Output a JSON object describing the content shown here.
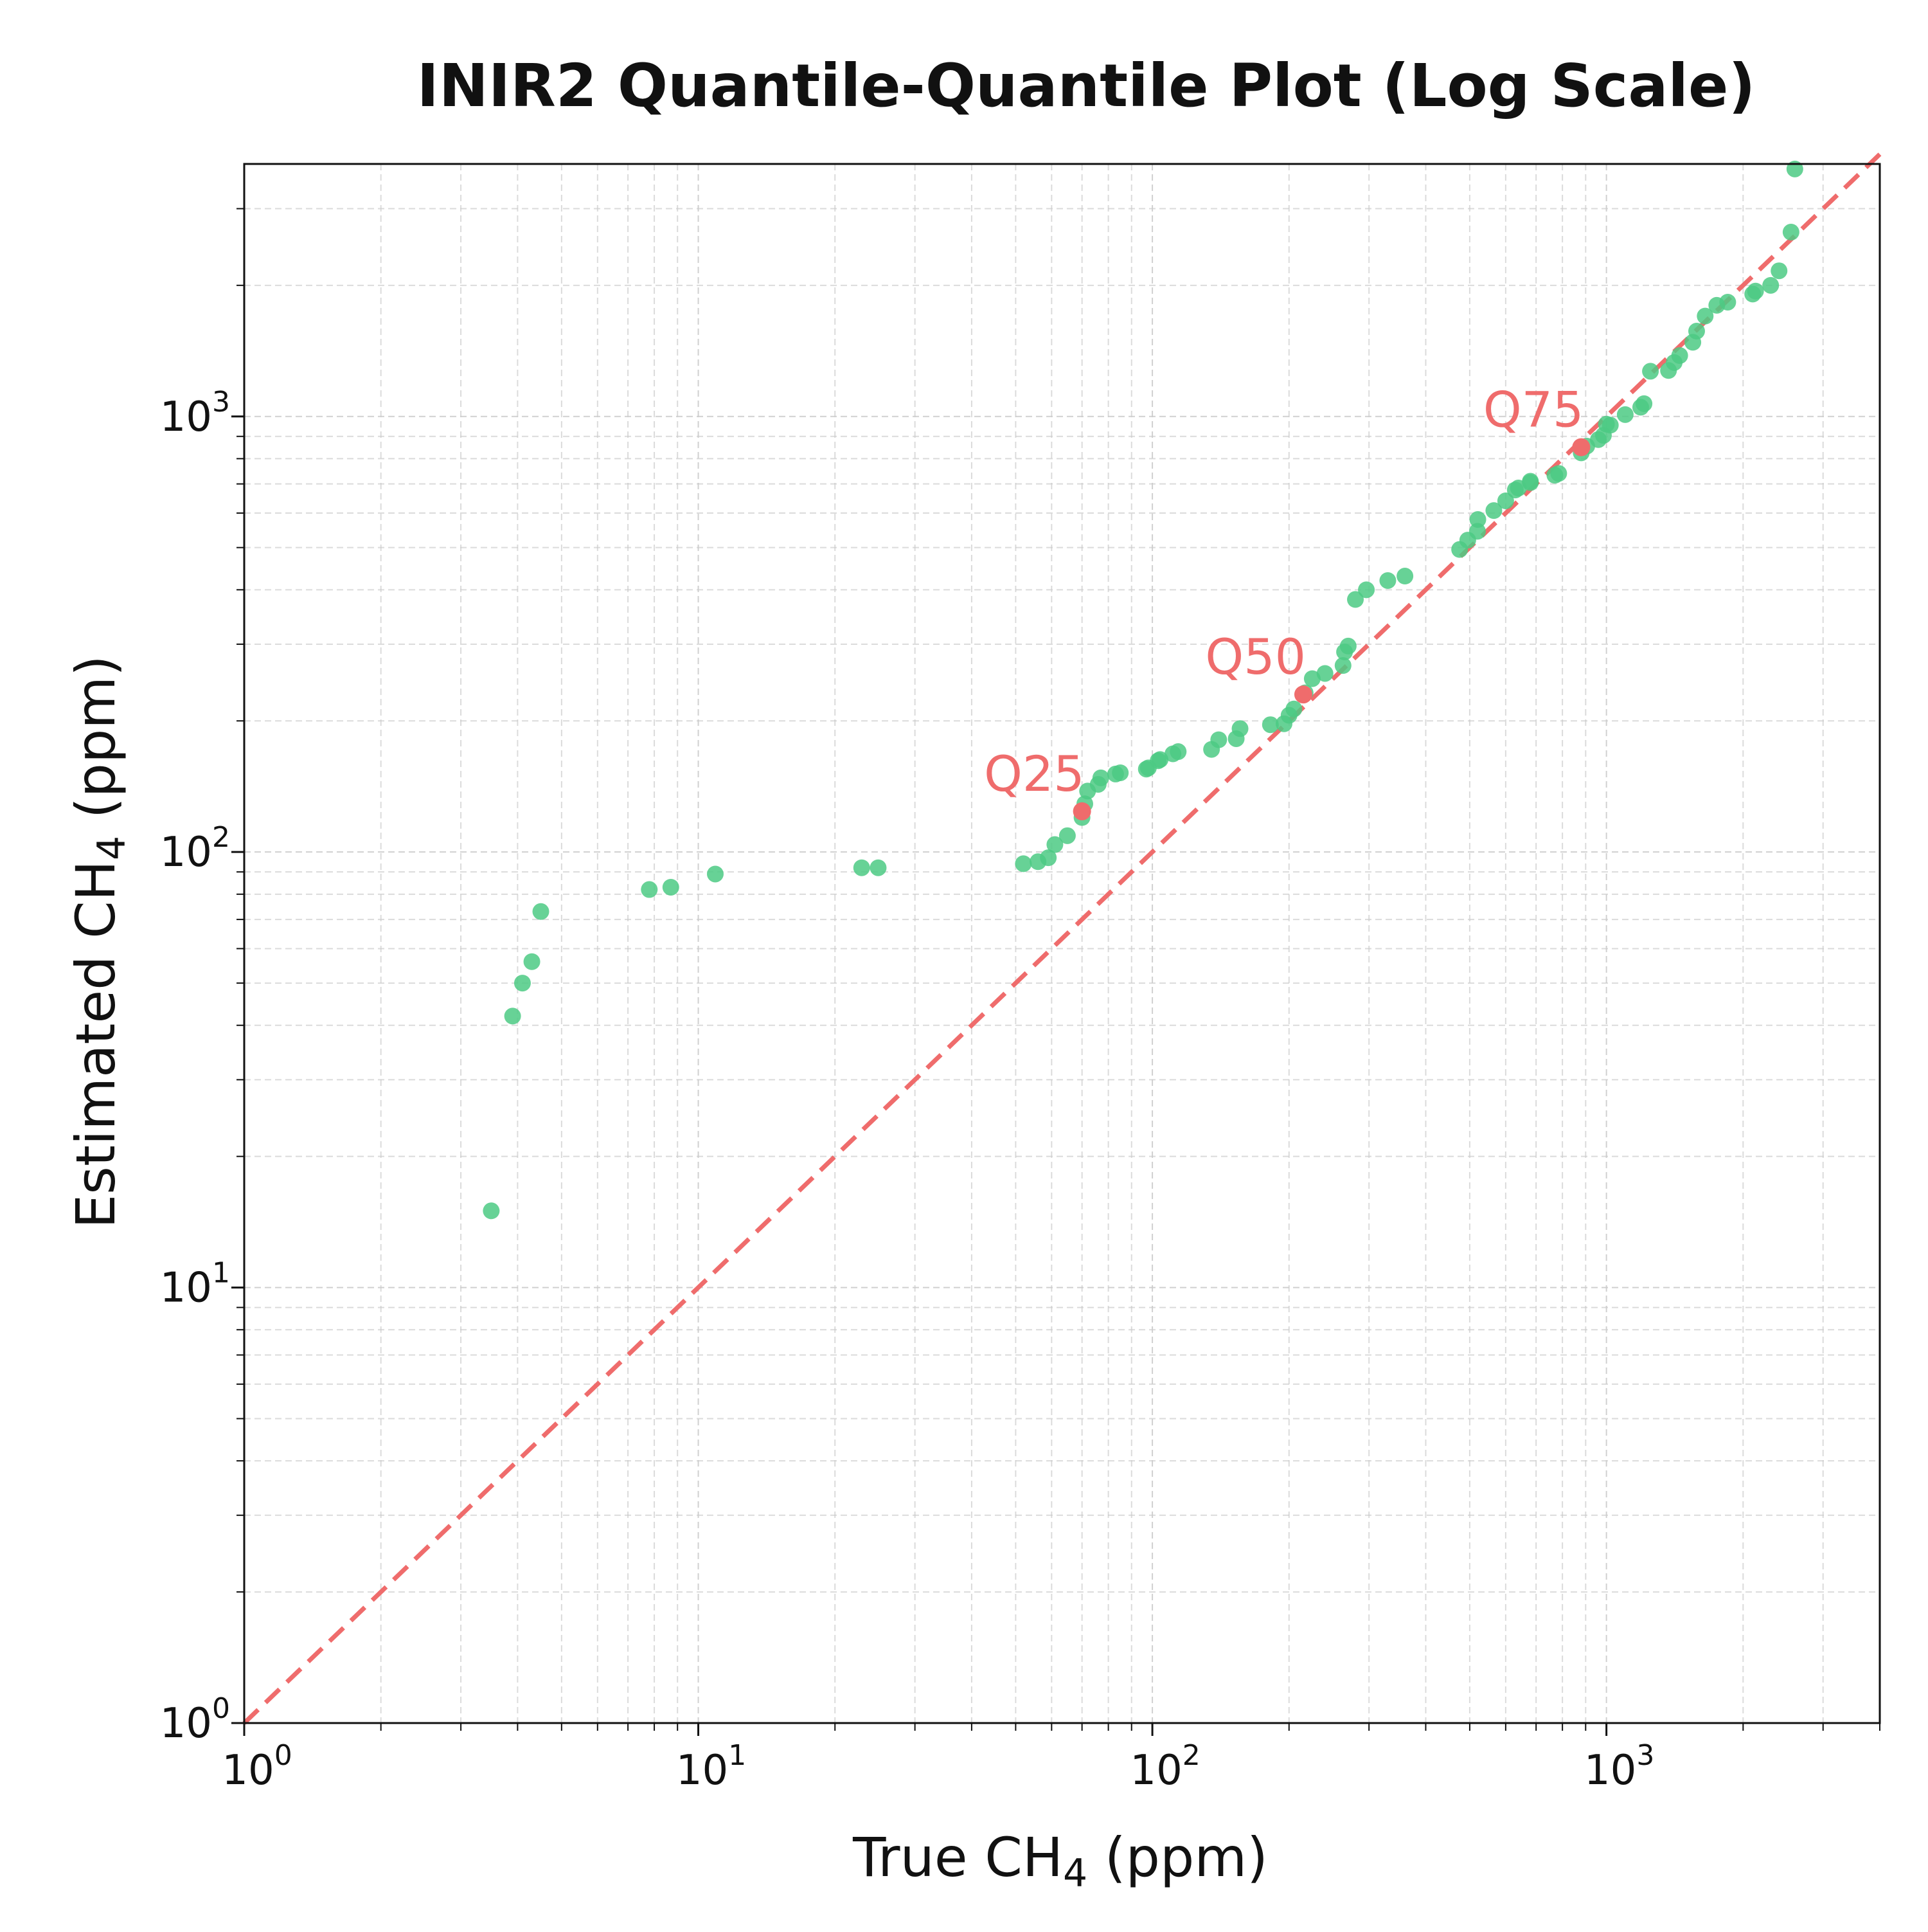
{
  "chart_data": {
    "type": "scatter",
    "title": "INIR2 Quantile-Quantile Plot (Log Scale)",
    "xlabel": "True CH4 (ppm)",
    "ylabel": "Estimated CH4 (ppm)",
    "x_scale": "log",
    "y_scale": "log",
    "xlim": [
      1,
      4000
    ],
    "ylim": [
      1,
      3800
    ],
    "grid": true,
    "x_ticks": [
      {
        "value": 1,
        "base": "10",
        "exp": "0"
      },
      {
        "value": 10,
        "base": "10",
        "exp": "1"
      },
      {
        "value": 100,
        "base": "10",
        "exp": "2"
      },
      {
        "value": 1000,
        "base": "10",
        "exp": "3"
      }
    ],
    "y_ticks": [
      {
        "value": 1,
        "base": "10",
        "exp": "0"
      },
      {
        "value": 10,
        "base": "10",
        "exp": "1"
      },
      {
        "value": 100,
        "base": "10",
        "exp": "2"
      },
      {
        "value": 1000,
        "base": "10",
        "exp": "3"
      }
    ],
    "reference_line": {
      "style": "dashed",
      "color": "#ef6c6c",
      "from": [
        1,
        1
      ],
      "to": [
        4000,
        4000
      ]
    },
    "point_color": "#4cca84",
    "quartile_color": "#ef6c6c",
    "points": [
      [
        3.5,
        15
      ],
      [
        3.9,
        42
      ],
      [
        4.1,
        50
      ],
      [
        4.3,
        56
      ],
      [
        4.5,
        73
      ],
      [
        7.8,
        82
      ],
      [
        8.7,
        83
      ],
      [
        10.9,
        89
      ],
      [
        22.9,
        92
      ],
      [
        24.9,
        92
      ],
      [
        52,
        94
      ],
      [
        56,
        95
      ],
      [
        59,
        97
      ],
      [
        61,
        104
      ],
      [
        65,
        109
      ],
      [
        70,
        120
      ],
      [
        71,
        129
      ],
      [
        72,
        138
      ],
      [
        76,
        143
      ],
      [
        77,
        148
      ],
      [
        83,
        151
      ],
      [
        85,
        152
      ],
      [
        97,
        155
      ],
      [
        98,
        156
      ],
      [
        103,
        162
      ],
      [
        104,
        163
      ],
      [
        111,
        168
      ],
      [
        114,
        170
      ],
      [
        135,
        172
      ],
      [
        140,
        181
      ],
      [
        153,
        182
      ],
      [
        156,
        192
      ],
      [
        182,
        196
      ],
      [
        195,
        197
      ],
      [
        200,
        206
      ],
      [
        205,
        213
      ],
      [
        217,
        232
      ],
      [
        225,
        250
      ],
      [
        240,
        257
      ],
      [
        263,
        268
      ],
      [
        265,
        288
      ],
      [
        270,
        297
      ],
      [
        280,
        380
      ],
      [
        296,
        400
      ],
      [
        330,
        420
      ],
      [
        360,
        430
      ],
      [
        475,
        495
      ],
      [
        495,
        520
      ],
      [
        520,
        545
      ],
      [
        521,
        580
      ],
      [
        565,
        608
      ],
      [
        600,
        640
      ],
      [
        630,
        678
      ],
      [
        640,
        685
      ],
      [
        680,
        705
      ],
      [
        680,
        710
      ],
      [
        770,
        733
      ],
      [
        785,
        740
      ],
      [
        880,
        825
      ],
      [
        905,
        855
      ],
      [
        960,
        885
      ],
      [
        985,
        905
      ],
      [
        1020,
        955
      ],
      [
        1000,
        960
      ],
      [
        1100,
        1010
      ],
      [
        1190,
        1050
      ],
      [
        1210,
        1070
      ],
      [
        1250,
        1270
      ],
      [
        1370,
        1275
      ],
      [
        1410,
        1330
      ],
      [
        1450,
        1380
      ],
      [
        1550,
        1480
      ],
      [
        1580,
        1570
      ],
      [
        1650,
        1700
      ],
      [
        1750,
        1800
      ],
      [
        1850,
        1830
      ],
      [
        2100,
        1910
      ],
      [
        2130,
        1940
      ],
      [
        2300,
        2000
      ],
      [
        2400,
        2160
      ],
      [
        2550,
        2650
      ],
      [
        2600,
        3700
      ]
    ],
    "quartiles": [
      {
        "label": "Q25",
        "x": 70,
        "y": 124
      },
      {
        "label": "Q50",
        "x": 215,
        "y": 230
      },
      {
        "label": "Q75",
        "x": 880,
        "y": 850
      }
    ]
  }
}
